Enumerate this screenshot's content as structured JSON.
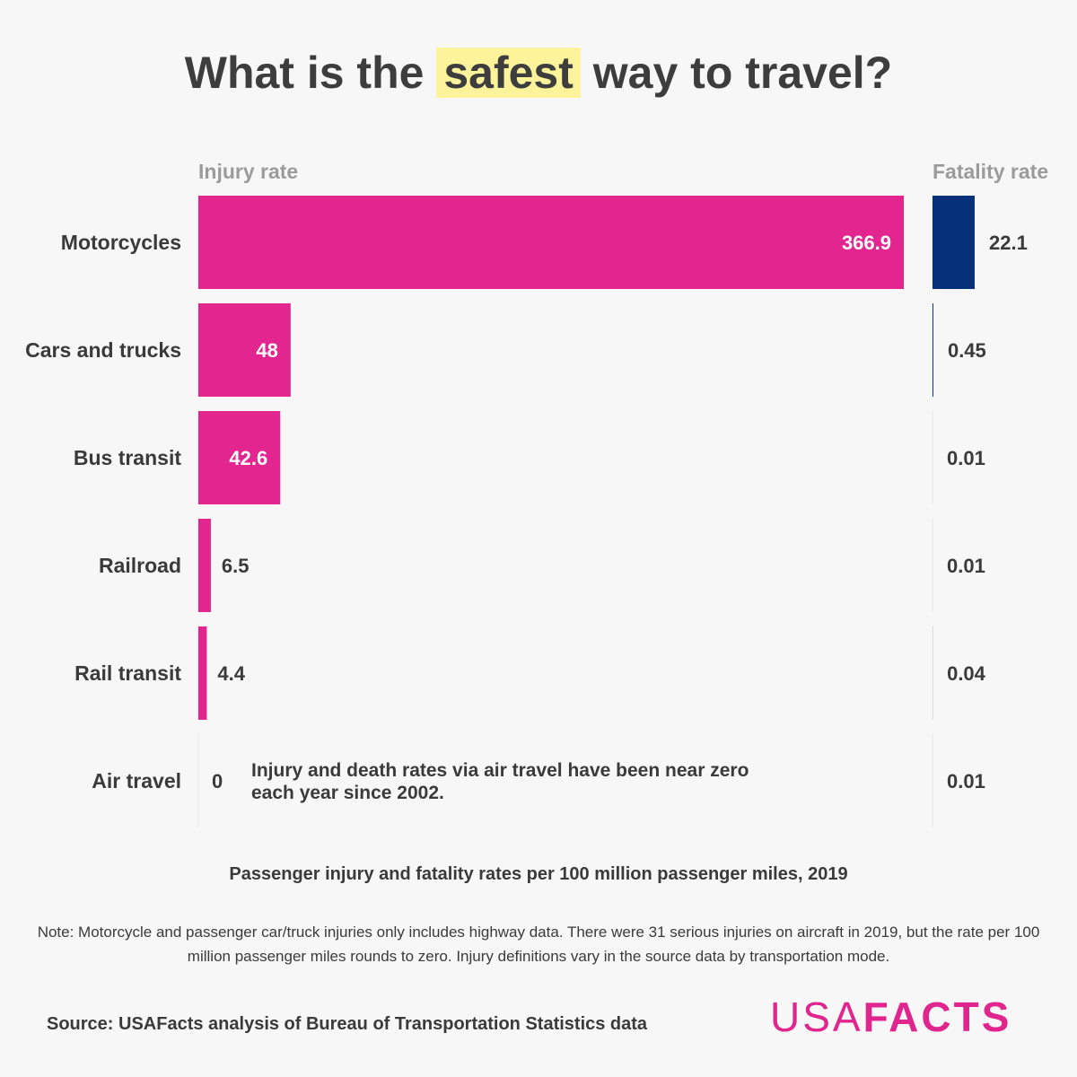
{
  "title": {
    "before": "What is the",
    "highlight": "safest",
    "after": "way to travel?",
    "highlight_color": "#fdf39a"
  },
  "headers": {
    "injury": "Injury rate",
    "fatality": "Fatality rate"
  },
  "colors": {
    "injury": "#e3268f",
    "fatality": "#06317a",
    "text": "#3a3a3a",
    "header": "#9b9b9b"
  },
  "air_note": "Injury and death rates via air travel have been near zero each year since 2002.",
  "subtitle": "Passenger injury and fatality rates per 100 million passenger miles, 2019",
  "note": "Note: Motorcycle and passenger car/truck injuries only includes highway data. There were 31 serious injuries on aircraft in 2019, but the rate per 100 million passenger miles rounds to zero. Injury definitions vary in the source data by transportation mode.",
  "source": "Source: USAFacts analysis of Bureau of Transportation Statistics data",
  "logo": {
    "part1": "USA",
    "part2": "FACTS"
  },
  "chart_data": {
    "type": "bar",
    "orientation": "horizontal",
    "categories": [
      "Motorcycles",
      "Cars and trucks",
      "Bus transit",
      "Railroad",
      "Rail transit",
      "Air travel"
    ],
    "series": [
      {
        "name": "Injury rate",
        "values": [
          366.9,
          48,
          42.6,
          6.5,
          4.4,
          0
        ],
        "labels": [
          "366.9",
          "48",
          "42.6",
          "6.5",
          "4.4",
          "0"
        ]
      },
      {
        "name": "Fatality rate",
        "values": [
          22.1,
          0.45,
          0.01,
          0.01,
          0.04,
          0.01
        ],
        "labels": [
          "22.1",
          "0.45",
          "0.01",
          "0.01",
          "0.04",
          "0.01"
        ]
      }
    ],
    "xlim_injury": [
      0,
      366.9
    ],
    "xlim_fatality": [
      0,
      22.1
    ],
    "grid": false,
    "legend": "none"
  }
}
